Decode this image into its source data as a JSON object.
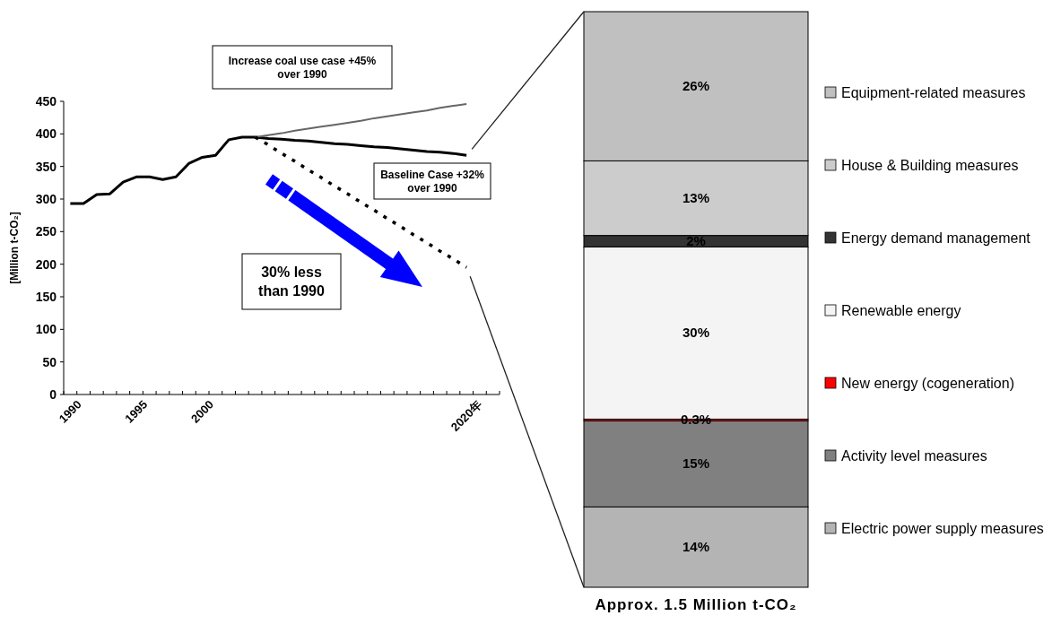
{
  "chart_data": [
    {
      "type": "line",
      "ylabel": "[Million t-CO₂]",
      "categories": [
        "1990",
        null,
        null,
        null,
        null,
        "1995",
        null,
        null,
        null,
        null,
        "2000",
        null,
        null,
        null,
        null,
        null,
        null,
        null,
        null,
        null,
        null,
        null,
        null,
        null,
        null,
        null,
        null,
        null,
        null,
        null,
        "2020年",
        null,
        null
      ],
      "ylim": [
        0,
        450
      ],
      "yticks": [
        0,
        50,
        100,
        150,
        200,
        250,
        300,
        350,
        400,
        450
      ],
      "series": [
        {
          "color": "#000000",
          "values": [
            293,
            293,
            307,
            308,
            326,
            334,
            334,
            330,
            334,
            355,
            364,
            367,
            391,
            395,
            395,
            393,
            392,
            390,
            389,
            387,
            385,
            384,
            382,
            380,
            379,
            377,
            375,
            373,
            372,
            370,
            367,
            null,
            null
          ]
        },
        {
          "color": "#666666",
          "values": [
            null,
            null,
            null,
            null,
            null,
            null,
            null,
            null,
            null,
            null,
            null,
            null,
            null,
            null,
            395,
            398,
            401,
            405,
            408,
            411,
            414,
            417,
            420,
            424,
            427,
            430,
            433,
            436,
            440,
            443,
            446,
            null,
            null
          ]
        },
        {
          "color": "#000000",
          "line_style": "dotted",
          "values": [
            null,
            null,
            null,
            null,
            null,
            null,
            null,
            null,
            null,
            null,
            null,
            null,
            null,
            null,
            395,
            383,
            370,
            358,
            345,
            333,
            320,
            308,
            295,
            283,
            270,
            258,
            245,
            233,
            220,
            208,
            195,
            null,
            null
          ]
        }
      ],
      "annotations": [
        "Increase coal use case +45% over 1990",
        "Baseline Case +32% over 1990",
        "30% less than 1990"
      ]
    },
    {
      "type": "bar",
      "stacked": true,
      "categories": [
        null
      ],
      "xlabel": "Approx. 1.5 Million t-CO₂",
      "legend": "right",
      "series": [
        {
          "name": "Electric power supply measures",
          "color": "#b4b4b4",
          "values": [
            14
          ],
          "value_labels": [
            "14%"
          ]
        },
        {
          "name": "Activity level measures",
          "color": "#808080",
          "values": [
            15
          ],
          "value_labels": [
            "15%"
          ]
        },
        {
          "name": "New energy (cogeneration)",
          "color": "#ff0000",
          "values": [
            0.3
          ],
          "value_labels": [
            "0.3%"
          ]
        },
        {
          "name": "Renewable energy",
          "color": "#f4f4f4",
          "values": [
            30
          ],
          "value_labels": [
            "30%"
          ]
        },
        {
          "name": "Energy demand management",
          "color": "#333333",
          "values": [
            2
          ],
          "value_labels": [
            "2%"
          ]
        },
        {
          "name": "House & Building measures",
          "color": "#cccccc",
          "values": [
            13
          ],
          "value_labels": [
            "13%"
          ]
        },
        {
          "name": "Equipment-related measures",
          "color": "#c0c0c0",
          "values": [
            26
          ],
          "value_labels": [
            "26%"
          ]
        }
      ]
    }
  ]
}
